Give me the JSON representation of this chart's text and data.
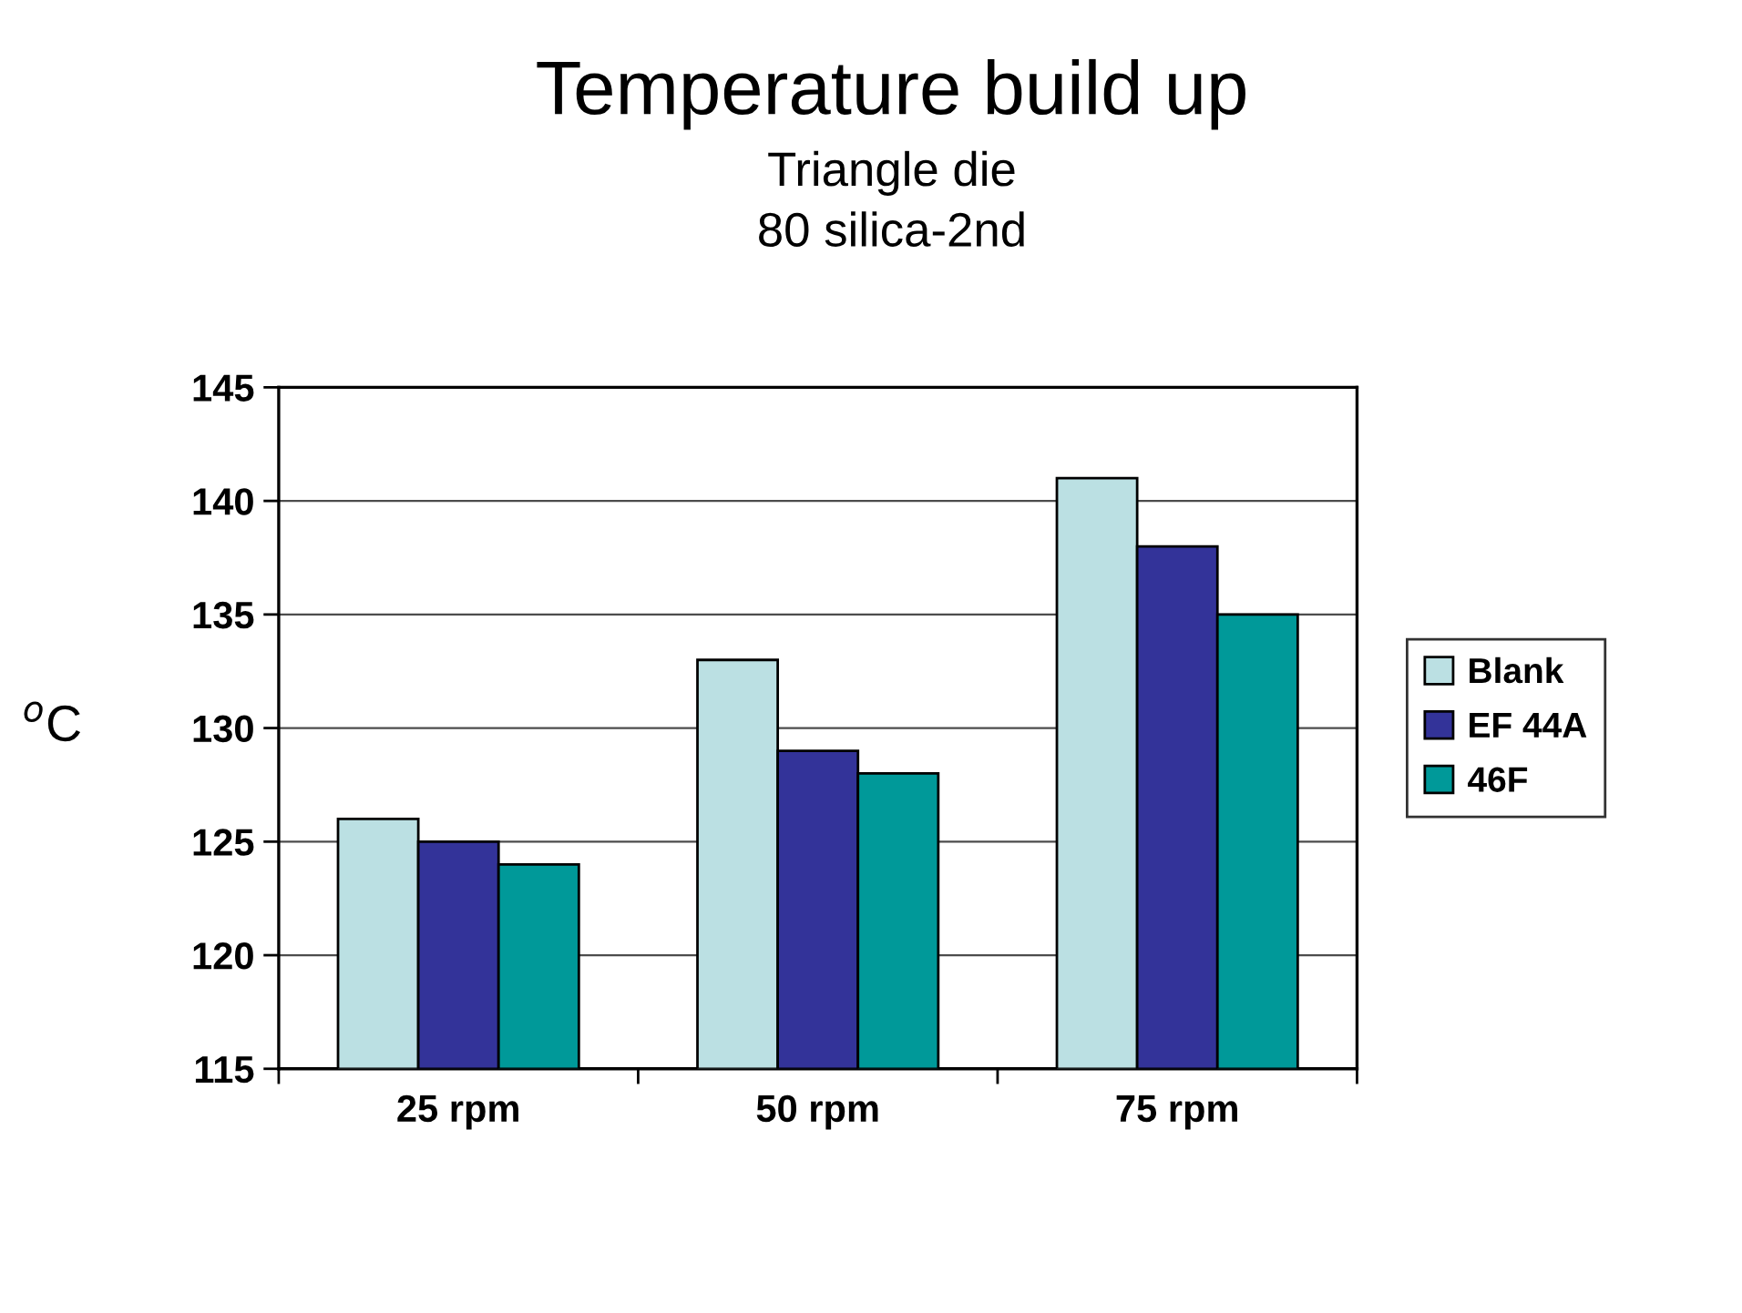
{
  "chart_data": {
    "type": "bar",
    "title": "Temperature build up",
    "subtitle": "Triangle die\n80 silica-2nd",
    "ylabel": "$^{o}$C",
    "categories": [
      "25 rpm",
      "50 rpm",
      "75 rpm"
    ],
    "series": [
      {
        "name": "Blank",
        "color": "#bbe0e3",
        "values": [
          126,
          133,
          141
        ]
      },
      {
        "name": "EF 44A",
        "color": "#333399",
        "values": [
          125,
          129,
          138
        ]
      },
      {
        "name": "46F",
        "color": "#009999",
        "values": [
          124,
          128,
          135
        ]
      }
    ],
    "ylim": [
      115,
      145
    ],
    "yticks": [
      115,
      120,
      125,
      130,
      135,
      140,
      145
    ],
    "grid": "y",
    "legend": "right"
  }
}
